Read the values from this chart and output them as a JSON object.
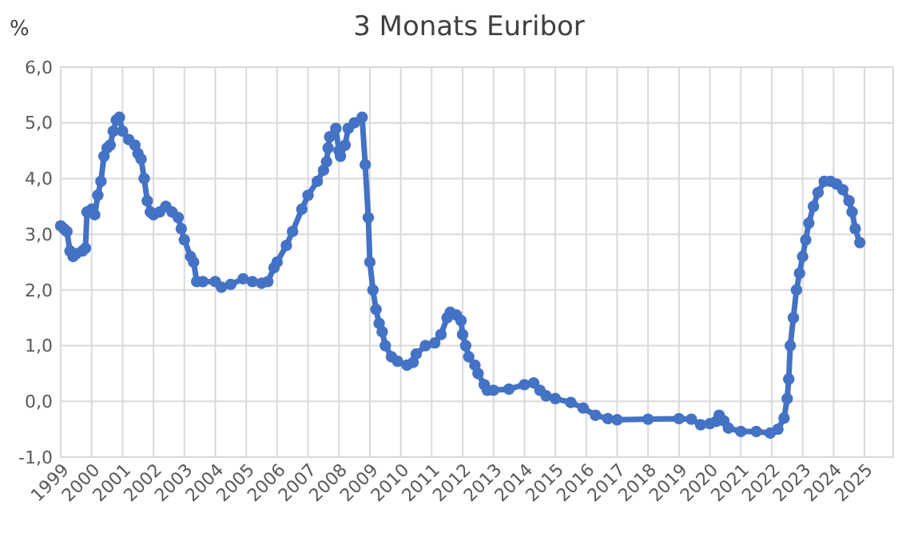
{
  "chart_data": {
    "type": "line",
    "title": "3 Monats Euribor",
    "ylabel": "%",
    "xlim": [
      1999,
      2025.93
    ],
    "xticks": [
      1999,
      2000,
      2001,
      2002,
      2003,
      2004,
      2005,
      2006,
      2007,
      2008,
      2009,
      2010,
      2011,
      2012,
      2013,
      2014,
      2015,
      2016,
      2017,
      2018,
      2019,
      2020,
      2021,
      2022,
      2023,
      2024,
      2025
    ],
    "ylim": [
      -1,
      6
    ],
    "yticks": [
      {
        "value": -1,
        "label": "-1,0"
      },
      {
        "value": 0,
        "label": "0,0"
      },
      {
        "value": 1,
        "label": "1,0"
      },
      {
        "value": 2,
        "label": "2,0"
      },
      {
        "value": 3,
        "label": "3,0"
      },
      {
        "value": 4,
        "label": "4,0"
      },
      {
        "value": 5,
        "label": "5,0"
      },
      {
        "value": 6,
        "label": "6,0"
      }
    ],
    "grid": true,
    "marker": "circle",
    "line_style": "solid",
    "series": [
      {
        "color": "#4472c4",
        "x": [
          1999.0,
          1999.1,
          1999.2,
          1999.3,
          1999.4,
          1999.5,
          1999.7,
          1999.8,
          1999.85,
          2000.0,
          2000.1,
          2000.2,
          2000.3,
          2000.4,
          2000.5,
          2000.6,
          2000.7,
          2000.8,
          2000.9,
          2001.0,
          2001.2,
          2001.4,
          2001.5,
          2001.6,
          2001.7,
          2001.8,
          2001.9,
          2002.0,
          2002.2,
          2002.4,
          2002.6,
          2002.8,
          2002.9,
          2003.0,
          2003.2,
          2003.3,
          2003.4,
          2003.6,
          2004.0,
          2004.2,
          2004.5,
          2004.9,
          2005.2,
          2005.5,
          2005.7,
          2005.9,
          2006.0,
          2006.3,
          2006.5,
          2006.8,
          2007.0,
          2007.3,
          2007.5,
          2007.6,
          2007.65,
          2007.7,
          2007.9,
          2008.0,
          2008.05,
          2008.2,
          2008.3,
          2008.5,
          2008.75,
          2008.85,
          2008.95,
          2009.0,
          2009.1,
          2009.2,
          2009.3,
          2009.4,
          2009.5,
          2009.7,
          2009.9,
          2010.2,
          2010.4,
          2010.5,
          2010.8,
          2011.1,
          2011.3,
          2011.5,
          2011.6,
          2011.8,
          2011.95,
          2012.0,
          2012.1,
          2012.2,
          2012.4,
          2012.5,
          2012.7,
          2012.8,
          2013.0,
          2013.5,
          2014.0,
          2014.3,
          2014.5,
          2014.7,
          2015.0,
          2015.5,
          2015.9,
          2016.3,
          2016.7,
          2017.0,
          2018.0,
          2019.0,
          2019.4,
          2019.7,
          2020.0,
          2020.2,
          2020.3,
          2020.45,
          2020.6,
          2021.0,
          2021.5,
          2021.95,
          2022.2,
          2022.4,
          2022.5,
          2022.55,
          2022.6,
          2022.7,
          2022.8,
          2022.9,
          2023.0,
          2023.1,
          2023.2,
          2023.35,
          2023.5,
          2023.7,
          2023.9,
          2024.1,
          2024.3,
          2024.5,
          2024.6,
          2024.7,
          2024.85
        ],
        "values": [
          3.15,
          3.1,
          3.05,
          2.7,
          2.6,
          2.65,
          2.7,
          2.75,
          3.4,
          3.45,
          3.35,
          3.7,
          3.95,
          4.4,
          4.55,
          4.6,
          4.85,
          5.05,
          5.1,
          4.85,
          4.7,
          4.6,
          4.45,
          4.35,
          4.0,
          3.6,
          3.4,
          3.35,
          3.4,
          3.5,
          3.4,
          3.3,
          3.1,
          2.9,
          2.6,
          2.5,
          2.15,
          2.15,
          2.15,
          2.05,
          2.1,
          2.2,
          2.15,
          2.12,
          2.15,
          2.4,
          2.5,
          2.8,
          3.05,
          3.45,
          3.7,
          3.95,
          4.15,
          4.3,
          4.55,
          4.75,
          4.9,
          4.5,
          4.4,
          4.6,
          4.9,
          5.0,
          5.1,
          4.25,
          3.3,
          2.5,
          2.0,
          1.65,
          1.4,
          1.25,
          1.0,
          0.8,
          0.72,
          0.65,
          0.7,
          0.85,
          1.0,
          1.05,
          1.2,
          1.5,
          1.6,
          1.55,
          1.45,
          1.2,
          1.0,
          0.8,
          0.65,
          0.5,
          0.3,
          0.2,
          0.2,
          0.22,
          0.3,
          0.33,
          0.2,
          0.1,
          0.05,
          -0.02,
          -0.12,
          -0.25,
          -0.31,
          -0.33,
          -0.32,
          -0.31,
          -0.32,
          -0.42,
          -0.4,
          -0.36,
          -0.25,
          -0.35,
          -0.48,
          -0.54,
          -0.54,
          -0.57,
          -0.5,
          -0.3,
          0.05,
          0.4,
          1.0,
          1.5,
          2.0,
          2.3,
          2.6,
          2.9,
          3.2,
          3.5,
          3.75,
          3.95,
          3.95,
          3.9,
          3.8,
          3.6,
          3.4,
          3.1,
          2.85
        ]
      }
    ]
  }
}
